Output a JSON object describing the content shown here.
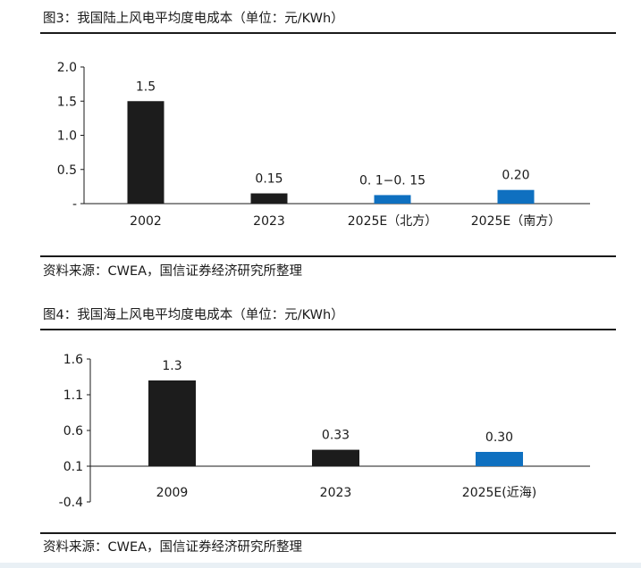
{
  "charts": [
    {
      "figure_title": "图3：我国陆上风电平均度电成本（单位：元/KWh）",
      "source": "资料来源：CWEA，国信证券经济研究所整理"
    },
    {
      "figure_title": "图4：我国海上风电平均度电成本（单位：元/KWh）",
      "source": "资料来源：CWEA，国信证券经济研究所整理"
    }
  ],
  "colors": {
    "actual": "#1c1c1c",
    "estimate": "#0f70c0"
  },
  "chart_data": [
    {
      "type": "bar",
      "title": "我国陆上风电平均度电成本（单位：元/KWh）",
      "categories": [
        "2002",
        "2023",
        "2025E（北方）",
        "2025E（南方）"
      ],
      "values": [
        1.5,
        0.15,
        0.125,
        0.2
      ],
      "data_labels": [
        "1.5",
        "0.15",
        "0. 1−0. 15",
        "0.20"
      ],
      "bar_colors": [
        "#1c1c1c",
        "#1c1c1c",
        "#0f70c0",
        "#0f70c0"
      ],
      "y_ticks": [
        "-",
        "0.5",
        "1.0",
        "1.5",
        "2.0"
      ],
      "y_tick_values": [
        0,
        0.5,
        1.0,
        1.5,
        2.0
      ],
      "ylim": [
        0,
        2.0
      ],
      "grid": false,
      "legend": "none"
    },
    {
      "type": "bar",
      "title": "我国海上风电平均度电成本（单位：元/KWh）",
      "categories": [
        "2009",
        "2023",
        "2025E(近海)"
      ],
      "values": [
        1.3,
        0.33,
        0.3
      ],
      "data_labels": [
        "1.3",
        "0.33",
        "0.30"
      ],
      "bar_colors": [
        "#1c1c1c",
        "#1c1c1c",
        "#0f70c0"
      ],
      "y_ticks": [
        "-0.4",
        "0.1",
        "0.6",
        "1.1",
        "1.6"
      ],
      "y_tick_values": [
        -0.4,
        0.1,
        0.6,
        1.1,
        1.6
      ],
      "ylim": [
        -0.4,
        1.6
      ],
      "baseline": 0.1,
      "grid": false,
      "legend": "none"
    }
  ]
}
